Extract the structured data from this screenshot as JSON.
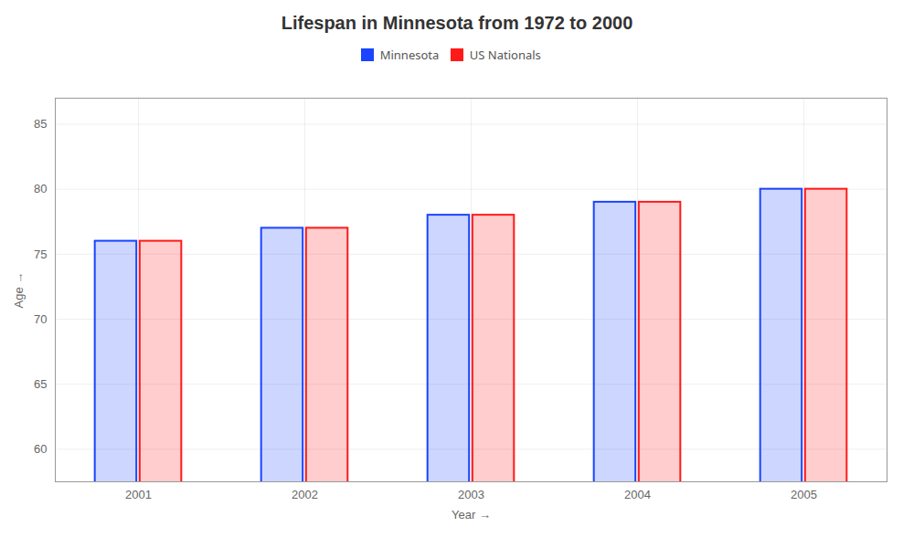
{
  "chart_data": {
    "type": "bar",
    "title": "Lifespan in Minnesota from 1972 to 2000",
    "x_label": "Year",
    "y_label": "Age",
    "categories": [
      "2001",
      "2002",
      "2003",
      "2004",
      "2005"
    ],
    "series": [
      {
        "name": "Minnesota",
        "color": "#1a44ff",
        "values": [
          76,
          77,
          78,
          79,
          80
        ]
      },
      {
        "name": "US Nationals",
        "color": "#ff1a1a",
        "values": [
          76,
          77,
          78,
          79,
          80
        ]
      }
    ],
    "ylim": [
      57.5,
      87
    ],
    "yticks": [
      60,
      65,
      70,
      75,
      80,
      85
    ],
    "grid": true,
    "legend": "top"
  }
}
